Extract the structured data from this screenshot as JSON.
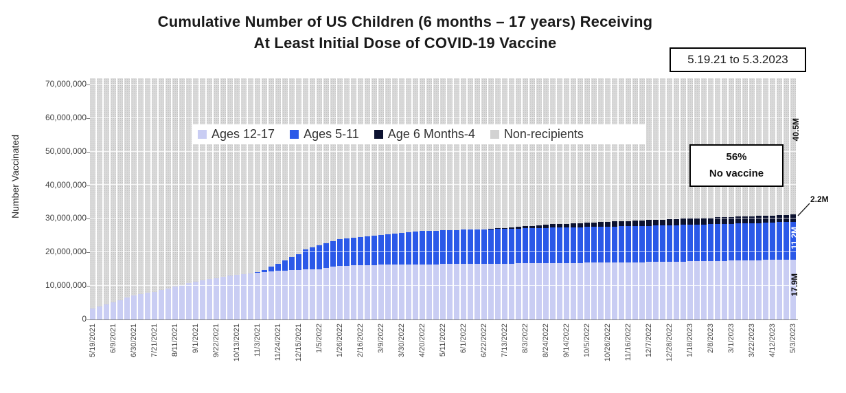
{
  "title": {
    "line1": "Cumulative Number of US Children (6 months – 17 years) Receiving",
    "line2": "At Least Initial Dose of COVID-19 Vaccine"
  },
  "date_range_box": "5.19.21 to 5.3.2023",
  "y_axis": {
    "label": "Number Vaccinated",
    "ticks": [
      "0",
      "10,000,000",
      "20,000,000",
      "30,000,000",
      "40,000,000",
      "50,000,000",
      "60,000,000",
      "70,000,000"
    ]
  },
  "legend": [
    {
      "label": "Ages 12-17",
      "color": "#c9cdf3"
    },
    {
      "label": "Ages 5-11",
      "color": "#2b59e8"
    },
    {
      "label": "Age 6 Months-4",
      "color": "#0c1230"
    },
    {
      "label": "Non-recipients",
      "color": "#d2d2d2"
    }
  ],
  "annotations": {
    "no_vaccine": {
      "line1": "56%",
      "line2": "No vaccine"
    },
    "non_recipients": "40.5M",
    "age_6m_4": "2.2M",
    "ages_5_11": "11.2M",
    "ages_12_17": "17.9M"
  },
  "chart_data": {
    "type": "bar",
    "stacked": true,
    "units": "millions of children",
    "frequency": "weekly",
    "x_start": "5/19/2021",
    "x_end": "5/3/2023",
    "x_tick_labels": [
      "5/19/2021",
      "6/9/2021",
      "6/30/2021",
      "7/21/2021",
      "8/11/2021",
      "9/1/2021",
      "9/22/2021",
      "10/13/2021",
      "11/3/2021",
      "11/24/2021",
      "12/15/2021",
      "1/5/2022",
      "1/26/2022",
      "2/16/2022",
      "3/9/2022",
      "3/30/2022",
      "4/20/2022",
      "5/11/2022",
      "6/1/2022",
      "6/22/2022",
      "7/13/2022",
      "8/3/2022",
      "8/24/2022",
      "9/14/2022",
      "10/5/2022",
      "10/26/2022",
      "11/16/2022",
      "12/7/2022",
      "12/28/2022",
      "1/18/2023",
      "2/8/2023",
      "3/1/2023",
      "3/22/2023",
      "4/12/2023",
      "5/3/2023"
    ],
    "x_tick_every_n_bars": 3,
    "ylim": [
      0,
      71.8
    ],
    "total_population_millions": 71.8,
    "non_recipients_final_millions": 40.5,
    "non_recipients_final_pct": 56,
    "series": [
      {
        "name": "Ages 12-17",
        "color": "#c9cdf3",
        "final_label": "17.9M",
        "values": [
          3.3,
          3.9,
          4.5,
          5.1,
          5.8,
          6.5,
          7.2,
          7.5,
          7.9,
          8.2,
          8.7,
          9.3,
          9.8,
          10.3,
          10.8,
          11.3,
          11.6,
          12.0,
          12.3,
          12.6,
          13.0,
          13.3,
          13.5,
          13.7,
          13.9,
          14.1,
          14.3,
          14.5,
          14.6,
          14.7,
          14.8,
          14.85,
          14.95,
          15.0,
          15.35,
          15.7,
          16.0,
          16.05,
          16.15,
          16.2,
          16.25,
          16.25,
          16.3,
          16.3,
          16.35,
          16.35,
          16.4,
          16.4,
          16.4,
          16.45,
          16.45,
          16.5,
          16.5,
          16.5,
          16.55,
          16.55,
          16.6,
          16.6,
          16.6,
          16.65,
          16.65,
          16.65,
          16.7,
          16.7,
          16.7,
          16.75,
          16.75,
          16.8,
          16.8,
          16.8,
          16.85,
          16.85,
          16.9,
          16.9,
          16.95,
          16.95,
          17.0,
          17.0,
          17.0,
          17.05,
          17.05,
          17.1,
          17.15,
          17.15,
          17.2,
          17.25,
          17.25,
          17.3,
          17.35,
          17.35,
          17.4,
          17.45,
          17.45,
          17.5,
          17.55,
          17.55,
          17.6,
          17.65,
          17.7,
          17.75,
          17.8,
          17.85,
          17.9
        ]
      },
      {
        "name": "Ages 5-11",
        "color": "#2b59e8",
        "final_label": "11.2M",
        "values": [
          0,
          0,
          0,
          0,
          0,
          0,
          0,
          0,
          0,
          0,
          0,
          0,
          0,
          0,
          0,
          0,
          0,
          0,
          0,
          0,
          0,
          0,
          0,
          0,
          0.15,
          0.7,
          1.4,
          2.1,
          3.0,
          4.0,
          4.6,
          6.0,
          6.6,
          7.0,
          7.4,
          7.7,
          7.9,
          8.05,
          8.2,
          8.3,
          8.5,
          8.7,
          8.9,
          9.05,
          9.2,
          9.4,
          9.6,
          9.75,
          9.9,
          9.95,
          10.0,
          10.1,
          10.15,
          10.15,
          10.2,
          10.25,
          10.25,
          10.3,
          10.3,
          10.3,
          10.35,
          10.4,
          10.4,
          10.45,
          10.45,
          10.5,
          10.5,
          10.55,
          10.55,
          10.6,
          10.6,
          10.6,
          10.65,
          10.65,
          10.7,
          10.7,
          10.7,
          10.75,
          10.75,
          10.75,
          10.8,
          10.8,
          10.8,
          10.85,
          10.85,
          10.85,
          10.9,
          10.9,
          10.9,
          10.95,
          10.95,
          10.95,
          11.0,
          11.0,
          11.0,
          11.05,
          11.05,
          11.05,
          11.1,
          11.1,
          11.15,
          11.15,
          11.2
        ]
      },
      {
        "name": "Age 6 Months-4",
        "color": "#0c1230",
        "final_label": "2.2M",
        "values": [
          0,
          0,
          0,
          0,
          0,
          0,
          0,
          0,
          0,
          0,
          0,
          0,
          0,
          0,
          0,
          0,
          0,
          0,
          0,
          0,
          0,
          0,
          0,
          0,
          0,
          0,
          0,
          0,
          0,
          0,
          0,
          0,
          0,
          0,
          0,
          0,
          0,
          0,
          0,
          0,
          0,
          0,
          0,
          0,
          0,
          0,
          0,
          0,
          0,
          0,
          0,
          0,
          0,
          0,
          0,
          0,
          0,
          0,
          0.1,
          0.2,
          0.3,
          0.4,
          0.5,
          0.6,
          0.7,
          0.8,
          0.9,
          1.0,
          1.05,
          1.1,
          1.15,
          1.2,
          1.3,
          1.35,
          1.4,
          1.45,
          1.5,
          1.55,
          1.6,
          1.65,
          1.65,
          1.7,
          1.75,
          1.75,
          1.8,
          1.85,
          1.85,
          1.9,
          1.9,
          1.95,
          1.95,
          2.0,
          2.0,
          2.0,
          2.05,
          2.05,
          2.05,
          2.1,
          2.1,
          2.1,
          2.15,
          2.15,
          2.2
        ]
      },
      {
        "name": "Non-recipients",
        "color": "#d9d9d9",
        "fills_to_total": true
      }
    ]
  }
}
